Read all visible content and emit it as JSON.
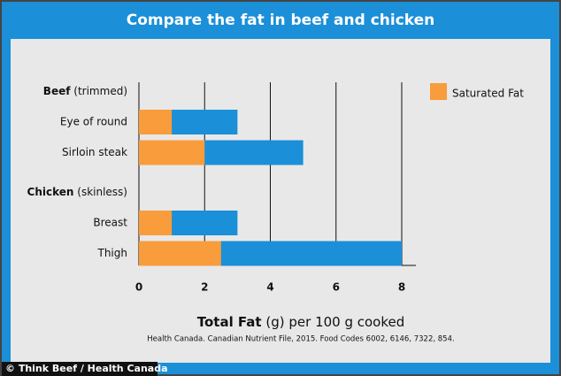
{
  "chart_data": {
    "type": "bar",
    "title": "Compare the fat in beef and chicken",
    "xlabel": "Total Fat",
    "xlabel_detail": "(g) per 100 g cooked",
    "source": "Health Canada. Canadian Nutrient File, 2015. Food Codes 6002, 6146, 7322, 854.",
    "credit": "© Think Beef / Health Canada",
    "legend": {
      "name": "Saturated Fat",
      "color": "#f89c3c"
    },
    "total_color": "#1b8fd8",
    "xlim": [
      0,
      8
    ],
    "xticks": [
      0,
      2,
      4,
      6,
      8
    ],
    "groups": [
      {
        "name": "Beef",
        "detail": "(trimmed)",
        "categories": [
          "Eye of round",
          "Sirloin steak"
        ],
        "values": [
          3,
          5
        ],
        "saturated": [
          1,
          2
        ]
      },
      {
        "name": "Chicken",
        "detail": "(skinless)",
        "categories": [
          "Breast",
          "Thigh"
        ],
        "values": [
          3,
          8
        ],
        "saturated": [
          1,
          2.5
        ]
      }
    ]
  }
}
